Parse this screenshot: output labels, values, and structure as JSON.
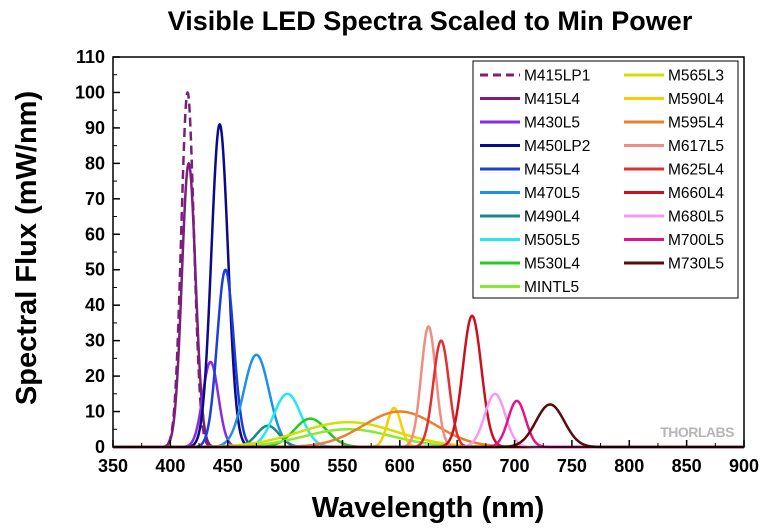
{
  "chart_data": {
    "type": "line",
    "title": "Visible LED Spectra Scaled to Min Power",
    "xlabel": "Wavelength (nm)",
    "ylabel": "Spectral Flux (mW/nm)",
    "xlim": [
      350,
      900
    ],
    "ylim": [
      0,
      110
    ],
    "xticks": [
      350,
      400,
      450,
      500,
      550,
      600,
      650,
      700,
      750,
      800,
      850,
      900
    ],
    "yticks": [
      0,
      10,
      20,
      30,
      40,
      50,
      60,
      70,
      80,
      90,
      100,
      110
    ],
    "grid": false,
    "legend_position": "top-right",
    "watermark": "THORLABS",
    "series": [
      {
        "name": "M415LP1",
        "color": "#7b1f7b",
        "dashed": true,
        "peak": 415,
        "fwhm": 13,
        "value": 100
      },
      {
        "name": "M415L4",
        "color": "#7b1f7b",
        "dashed": false,
        "peak": 416,
        "fwhm": 14,
        "value": 80
      },
      {
        "name": "M430L5",
        "color": "#8b2be2",
        "dashed": false,
        "peak": 435,
        "fwhm": 16,
        "value": 24
      },
      {
        "name": "M450LP2",
        "color": "#0a0a8a",
        "dashed": false,
        "peak": 443,
        "fwhm": 17,
        "value": 91
      },
      {
        "name": "M455L4",
        "color": "#1c3fd8",
        "dashed": false,
        "peak": 448,
        "fwhm": 17,
        "value": 50
      },
      {
        "name": "M470L5",
        "color": "#1e90e8",
        "dashed": false,
        "peak": 475,
        "fwhm": 26,
        "value": 26
      },
      {
        "name": "M490L4",
        "color": "#168a8a",
        "dashed": false,
        "peak": 485,
        "fwhm": 23,
        "value": 6
      },
      {
        "name": "M505L5",
        "color": "#22e8f0",
        "dashed": false,
        "peak": 502,
        "fwhm": 28,
        "value": 15
      },
      {
        "name": "M530L4",
        "color": "#1fcc1f",
        "dashed": false,
        "peak": 522,
        "fwhm": 33,
        "value": 8
      },
      {
        "name": "MINTL5",
        "color": "#8ae830",
        "dashed": false,
        "peak": 555,
        "fwhm": 90,
        "value": 5
      },
      {
        "name": "M565L3",
        "color": "#d0e000",
        "dashed": false,
        "peak": 555,
        "fwhm": 100,
        "value": 7
      },
      {
        "name": "M590L4",
        "color": "#f5cd00",
        "dashed": false,
        "peak": 595,
        "fwhm": 14,
        "value": 11
      },
      {
        "name": "M595L4",
        "color": "#e8812c",
        "dashed": false,
        "peak": 600,
        "fwhm": 75,
        "value": 10
      },
      {
        "name": "M617L5",
        "color": "#f08d82",
        "dashed": false,
        "peak": 625,
        "fwhm": 15,
        "value": 34
      },
      {
        "name": "M625L4",
        "color": "#e03030",
        "dashed": false,
        "peak": 636,
        "fwhm": 16,
        "value": 30
      },
      {
        "name": "M660L4",
        "color": "#cc1020",
        "dashed": false,
        "peak": 663,
        "fwhm": 19,
        "value": 37
      },
      {
        "name": "M680L5",
        "color": "#f49af0",
        "dashed": false,
        "peak": 683,
        "fwhm": 21,
        "value": 15
      },
      {
        "name": "M700L5",
        "color": "#e0148c",
        "dashed": false,
        "peak": 702,
        "fwhm": 18,
        "value": 13
      },
      {
        "name": "M730L5",
        "color": "#5a0a0a",
        "dashed": false,
        "peak": 731,
        "fwhm": 29,
        "value": 12
      }
    ]
  }
}
